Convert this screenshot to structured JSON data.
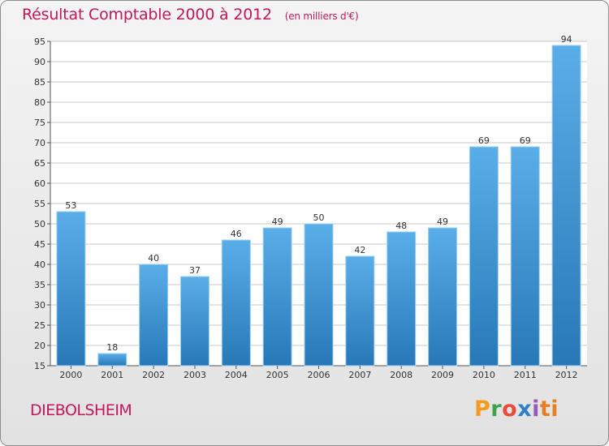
{
  "chart_data": {
    "type": "bar",
    "title": "Résultat Comptable 2000 à 2012",
    "subtitle": "(en milliers d'€)",
    "categories": [
      "2000",
      "2001",
      "2002",
      "2003",
      "2004",
      "2005",
      "2006",
      "2007",
      "2008",
      "2009",
      "2010",
      "2011",
      "2012"
    ],
    "values": [
      53,
      18,
      40,
      37,
      46,
      49,
      50,
      42,
      48,
      49,
      69,
      69,
      94
    ],
    "ylim": [
      15,
      95
    ],
    "yticks": [
      15,
      20,
      25,
      30,
      35,
      40,
      45,
      50,
      55,
      60,
      65,
      70,
      75,
      80,
      85,
      90,
      95
    ],
    "grid": true,
    "xlabel": "",
    "ylabel": "",
    "bar_color_top": "#5aaee8",
    "bar_color_bottom": "#2878b8"
  },
  "footer": {
    "town": "DIEBOLSHEIM",
    "brand_letters": [
      "P",
      "r",
      "o",
      "x",
      "i",
      "ti"
    ]
  },
  "colors": {
    "title": "#c2185b",
    "grid": "#c8c8c8"
  }
}
